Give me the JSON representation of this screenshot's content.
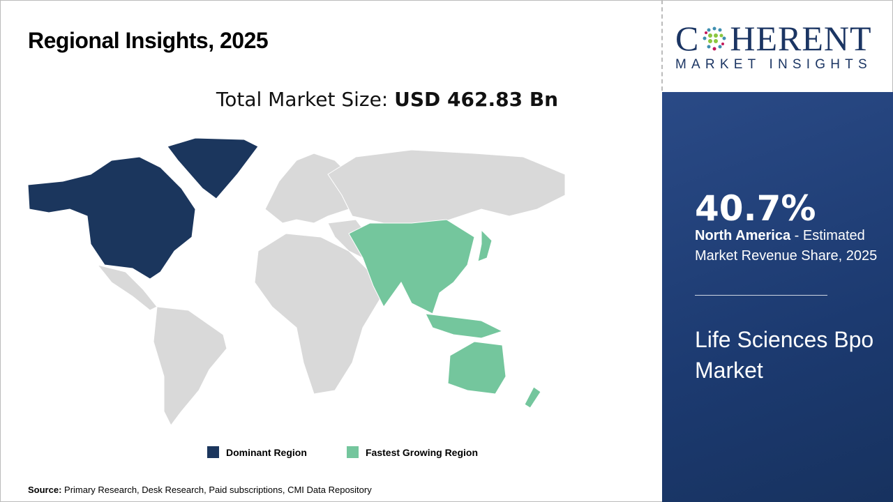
{
  "header": {
    "title": "Regional Insights, 2025"
  },
  "market": {
    "label": "Total Market Size: ",
    "value": "USD 462.83 Bn"
  },
  "legend": [
    {
      "label": "Dominant Region",
      "color": "#1b365d"
    },
    {
      "label": "Fastest Growing Region",
      "color": "#74c69d"
    }
  ],
  "map": {
    "dominant_region": "North America",
    "fastest_growing_region": "Asia Pacific",
    "other_color": "#d9d9d9"
  },
  "source": {
    "label": "Source:",
    "text": " Primary Research, Desk Research, Paid subscriptions, CMI Data Repository"
  },
  "logo": {
    "line1_a": "C",
    "line1_b": "HERENT",
    "line2": "MARKET INSIGHTS"
  },
  "panel": {
    "percent": "40.7%",
    "region": "North America",
    "desc": " - Estimated Market Revenue Share, 2025",
    "market_name": "Life Sciences Bpo Market"
  }
}
